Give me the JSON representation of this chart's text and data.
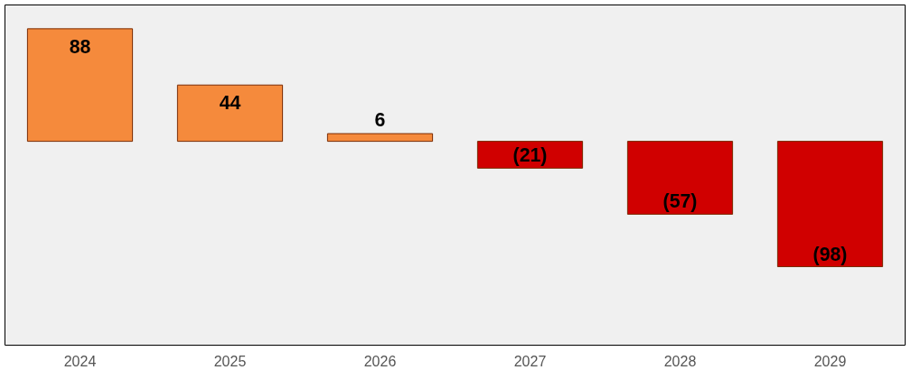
{
  "chart_data": {
    "type": "bar",
    "categories": [
      "2024",
      "2025",
      "2026",
      "2027",
      "2028",
      "2029"
    ],
    "values": [
      88,
      44,
      6,
      -21,
      -57,
      -98
    ],
    "value_labels": [
      "88",
      "44",
      "6",
      "(21)",
      "(57)",
      "(98)"
    ],
    "colors": [
      "#f58a3c",
      "#f58a3c",
      "#f58a3c",
      "#d00000",
      "#d00000",
      "#d00000"
    ],
    "grid": false
  }
}
